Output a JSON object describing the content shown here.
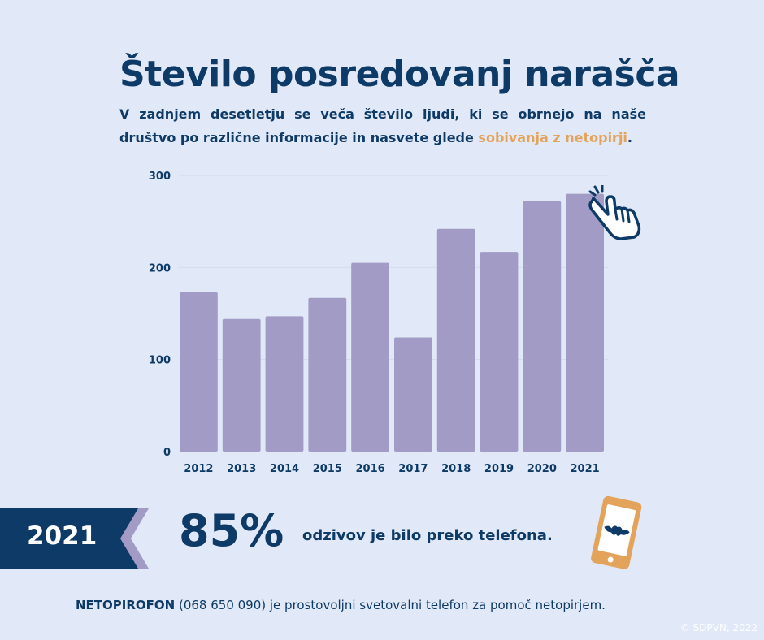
{
  "header": {
    "title": "Število posredovanj narašča",
    "subtitle_part1": "V zadnjem desetletju se veča število ljudi, ki se obrnejo na naše društvo po različne informacije in nasvete glede ",
    "subtitle_highlight": "sobivanja z netopirji",
    "subtitle_end": "."
  },
  "chart_data": {
    "type": "bar",
    "categories": [
      "2012",
      "2013",
      "2014",
      "2015",
      "2016",
      "2017",
      "2018",
      "2019",
      "2020",
      "2021"
    ],
    "values": [
      173,
      144,
      147,
      167,
      205,
      124,
      242,
      217,
      272,
      280
    ],
    "ylim": [
      0,
      300
    ],
    "yticks": [
      0,
      100,
      200,
      300
    ],
    "grid": true,
    "bar_color": "#a29bc5",
    "grid_color": "#d3dcee",
    "label_color": "#0d3a66"
  },
  "stat": {
    "year": "2021",
    "percent": "85%",
    "text": "odzivov je bilo preko telefona."
  },
  "footer": {
    "name": "NETOPIROFON",
    "rest": " (068 650 090) je prostovoljni svetovalni telefon za pomoč netopirjem."
  },
  "copyright": "© SDPVN, 2022",
  "icons": [
    "hand-pointer-icon",
    "phone-bat-icon"
  ],
  "colors": {
    "background": "#e1e8f7",
    "navy": "#0d3a66",
    "accent": "#e3a35b",
    "lavender": "#a29bc5"
  }
}
